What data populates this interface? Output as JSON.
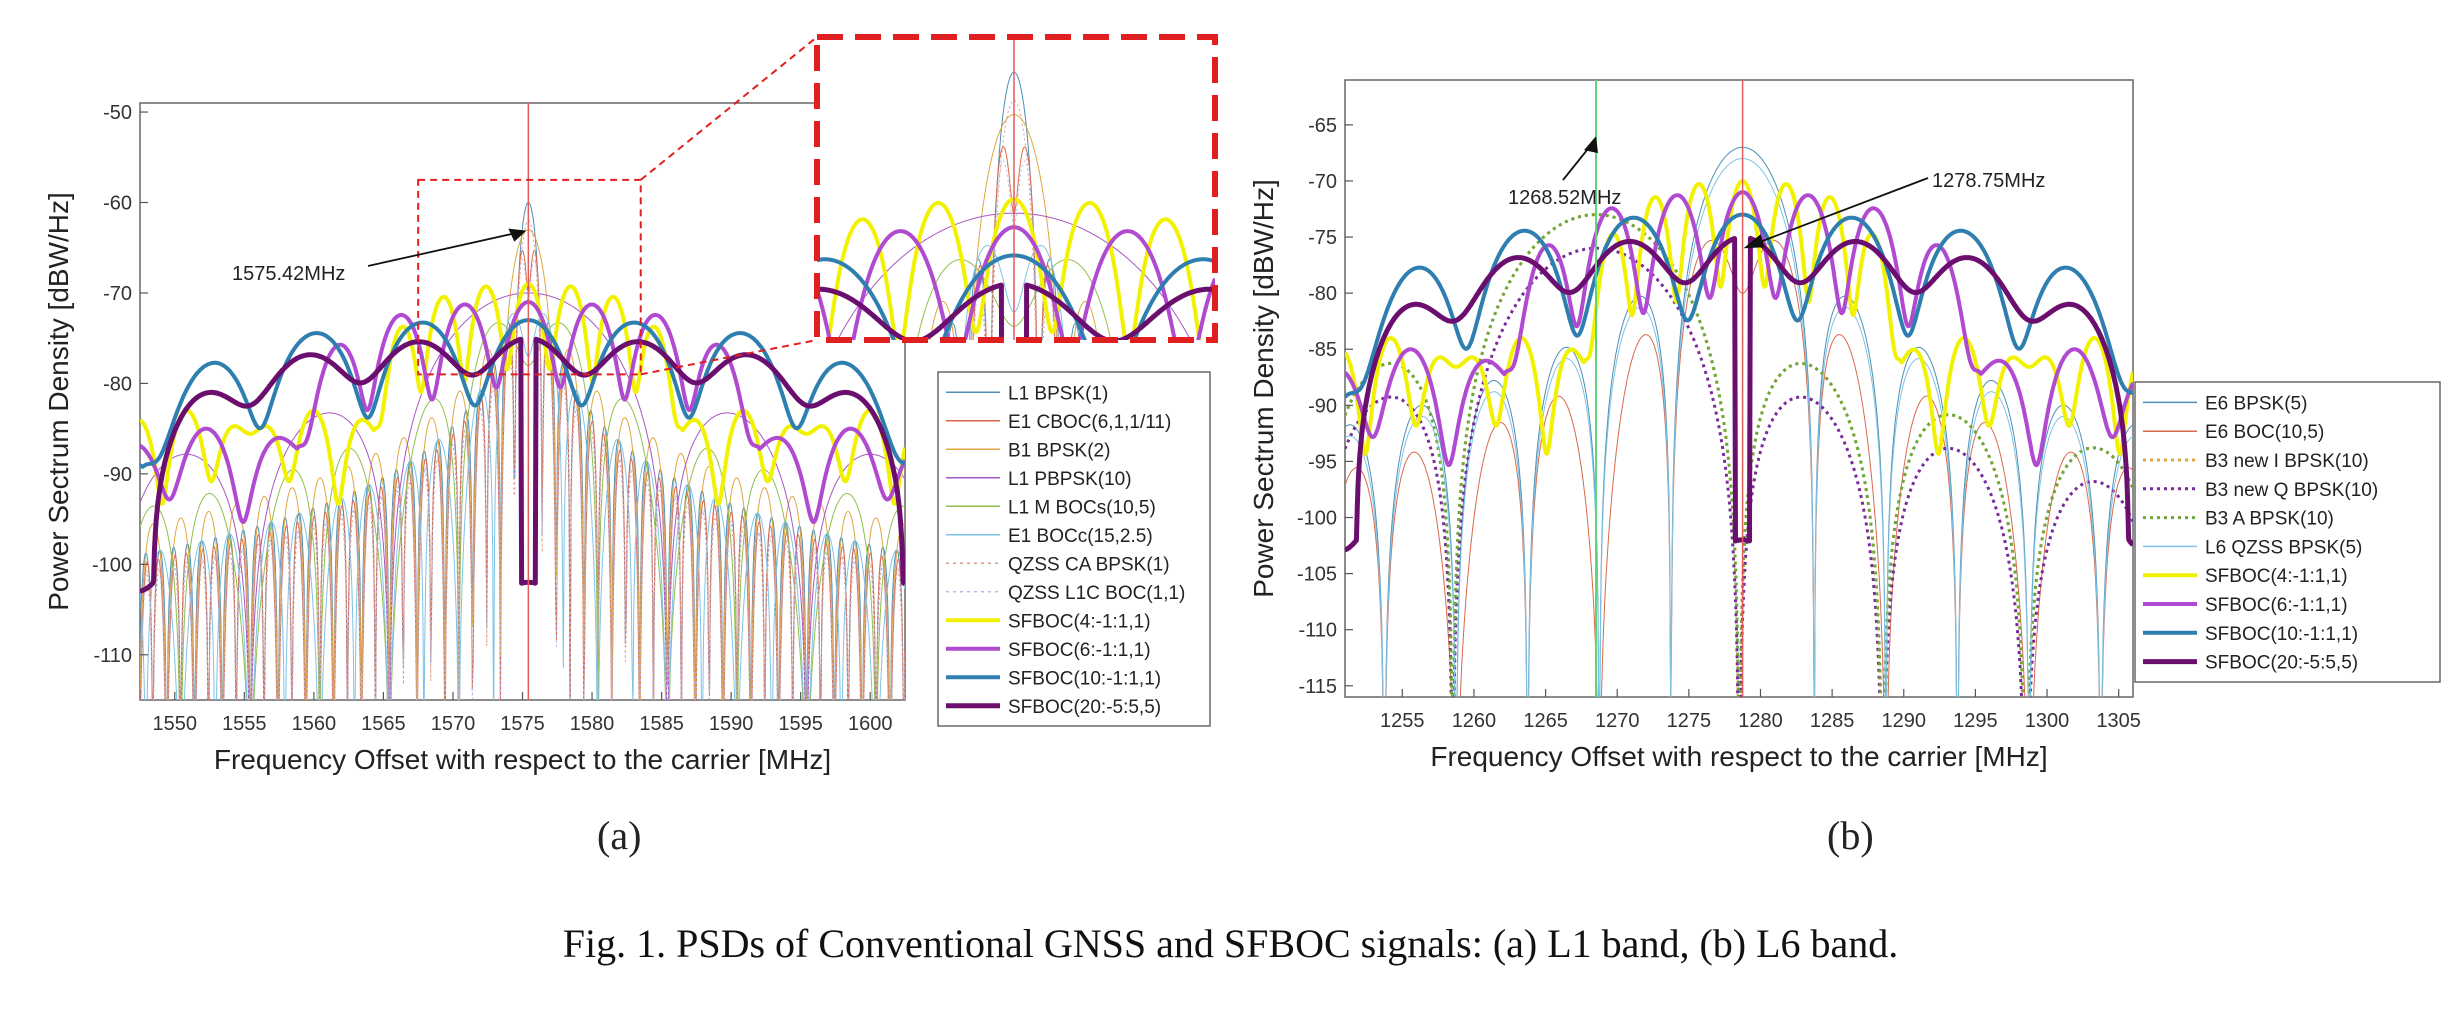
{
  "caption": "Fig. 1. PSDs of Conventional GNSS and SFBOC signals: (a) L1 band, (b) L6 band.",
  "chart_data": [
    {
      "panel_label": "(a)",
      "type": "line",
      "xlabel": "Frequency Offset with respect to the carrier [MHz]",
      "ylabel": "Power Sectrum Density [dBW/Hz]",
      "xlim": [
        1547.5,
        1602.5
      ],
      "ylim": [
        -115,
        -49
      ],
      "xticks": [
        1550,
        1555,
        1560,
        1565,
        1570,
        1575,
        1580,
        1585,
        1590,
        1595,
        1600
      ],
      "yticks": [
        -50,
        -60,
        -70,
        -80,
        -90,
        -100,
        -110
      ],
      "grid": false,
      "legend_position": "bottom-right",
      "center_line": 1575.42,
      "annotation": {
        "text": "1575.42MHz",
        "x": 1575.42,
        "y": -63
      },
      "zoom_inset": {
        "x_range": [
          1567.5,
          1583.5
        ],
        "y_range": [
          -79,
          -57.5
        ]
      },
      "series": [
        {
          "name": "L1 BPSK(1)",
          "color": "#4d8fb5",
          "width": 1,
          "dash": "solid",
          "center": 1575.42,
          "chip_rate": 1,
          "kind": "bpsk",
          "peak": -60
        },
        {
          "name": "E1 CBOC(6,1,1/11)",
          "color": "#d9694a",
          "width": 1,
          "dash": "solid",
          "center": 1575.42,
          "chip_rate": 1,
          "kind": "boc",
          "peak": -64
        },
        {
          "name": "B1 BPSK(2)",
          "color": "#e0a640",
          "width": 1,
          "dash": "solid",
          "center": 1575.42,
          "chip_rate": 2,
          "kind": "bpsk",
          "peak": -63
        },
        {
          "name": "L1 PBPSK(10)",
          "color": "#a857c2",
          "width": 1,
          "dash": "solid",
          "center": 1575.42,
          "chip_rate": 10,
          "kind": "bpsk",
          "peak": -70
        },
        {
          "name": "L1 M BOCs(10,5)",
          "color": "#8fbf4d",
          "width": 1,
          "dash": "solid",
          "center": 1575.42,
          "chip_rate": 5,
          "kind": "boc",
          "peak": -72
        },
        {
          "name": "E1 BOCc(15,2.5)",
          "color": "#7ec3e6",
          "width": 1,
          "dash": "solid",
          "center": 1575.42,
          "chip_rate": 2.5,
          "kind": "boc",
          "peak": -71
        },
        {
          "name": "QZSS CA BPSK(1)",
          "color": "#d99a8a",
          "width": 1,
          "dash": "dotted",
          "center": 1575.42,
          "chip_rate": 1,
          "kind": "bpsk",
          "peak": -62
        },
        {
          "name": "QZSS L1C BOC(1,1)",
          "color": "#b9b9e6",
          "width": 1,
          "dash": "dotted",
          "center": 1575.42,
          "chip_rate": 1,
          "kind": "boc",
          "peak": -65
        },
        {
          "name": "SFBOC(4:-1:1,1)",
          "color": "#f2f200",
          "width": 4,
          "dash": "solid",
          "center": 1575.42,
          "chip_rate": 4,
          "kind": "sfboc",
          "peak": -69
        },
        {
          "name": "SFBOC(6:-1:1,1)",
          "color": "#b04ad0",
          "width": 4,
          "dash": "solid",
          "center": 1575.42,
          "chip_rate": 6,
          "kind": "sfboc",
          "peak": -71
        },
        {
          "name": "SFBOC(10:-1:1,1)",
          "color": "#2e7fb0",
          "width": 4,
          "dash": "solid",
          "center": 1575.42,
          "chip_rate": 10,
          "kind": "sfboc",
          "peak": -73
        },
        {
          "name": "SFBOC(20:-5:5,5)",
          "color": "#6b0f6e",
          "width": 5,
          "dash": "solid",
          "center": 1575.42,
          "chip_rate": 20,
          "kind": "wide",
          "peak": -75
        }
      ]
    },
    {
      "panel_label": "(b)",
      "type": "line",
      "xlabel": "Frequency Offset with respect to the carrier [MHz]",
      "ylabel": "Power Sectrum Density [dBW/Hz]",
      "xlim": [
        1251,
        1306
      ],
      "ylim": [
        -116,
        -61
      ],
      "xticks": [
        1255,
        1260,
        1265,
        1270,
        1275,
        1280,
        1285,
        1290,
        1295,
        1300,
        1305
      ],
      "yticks": [
        -65,
        -70,
        -75,
        -80,
        -85,
        -90,
        -95,
        -100,
        -105,
        -110,
        -115
      ],
      "grid": false,
      "legend_position": "bottom-right",
      "center_line": 1278.75,
      "green_line": 1268.52,
      "annotations": [
        {
          "text": "1268.52MHz",
          "x": 1268.52,
          "y": -66
        },
        {
          "text": "1278.75MHz",
          "x": 1278.75,
          "y": -76
        }
      ],
      "series": [
        {
          "name": "E6 BPSK(5)",
          "color": "#4d8fb5",
          "width": 1,
          "dash": "solid",
          "center": 1278.75,
          "chip_rate": 5,
          "kind": "bpsk",
          "peak": -67
        },
        {
          "name": "E6 BOC(10,5)",
          "color": "#d9694a",
          "width": 1,
          "dash": "solid",
          "center": 1278.75,
          "chip_rate": 5,
          "kind": "boc",
          "peak": -74
        },
        {
          "name": "B3 new I BPSK(10)",
          "color": "#e0a640",
          "width": 3,
          "dash": "dotted",
          "center": 1268.52,
          "chip_rate": 10,
          "kind": "bpsk",
          "peak": -73
        },
        {
          "name": "B3 new Q BPSK(10)",
          "color": "#7a2a9a",
          "width": 3,
          "dash": "dotted",
          "center": 1268.52,
          "chip_rate": 10,
          "kind": "bpsk",
          "peak": -76
        },
        {
          "name": "B3 A BPSK(10)",
          "color": "#6ea83a",
          "width": 3,
          "dash": "dotted",
          "center": 1268.52,
          "chip_rate": 10,
          "kind": "bpsk",
          "peak": -73
        },
        {
          "name": "L6 QZSS BPSK(5)",
          "color": "#7ec3e6",
          "width": 1,
          "dash": "solid",
          "center": 1278.75,
          "chip_rate": 5,
          "kind": "bpsk",
          "peak": -68
        },
        {
          "name": "SFBOC(4:-1:1,1)",
          "color": "#f2f200",
          "width": 4,
          "dash": "solid",
          "center": 1278.75,
          "chip_rate": 4,
          "kind": "sfboc",
          "peak": -70
        },
        {
          "name": "SFBOC(6:-1:1,1)",
          "color": "#b04ad0",
          "width": 4,
          "dash": "solid",
          "center": 1278.75,
          "chip_rate": 6,
          "kind": "sfboc",
          "peak": -71
        },
        {
          "name": "SFBOC(10:-1:1,1)",
          "color": "#2e7fb0",
          "width": 4,
          "dash": "solid",
          "center": 1278.75,
          "chip_rate": 10,
          "kind": "sfboc",
          "peak": -73
        },
        {
          "name": "SFBOC(20:-5:5,5)",
          "color": "#6b0f6e",
          "width": 5,
          "dash": "solid",
          "center": 1278.75,
          "chip_rate": 20,
          "kind": "wide",
          "peak": -75
        }
      ]
    }
  ]
}
